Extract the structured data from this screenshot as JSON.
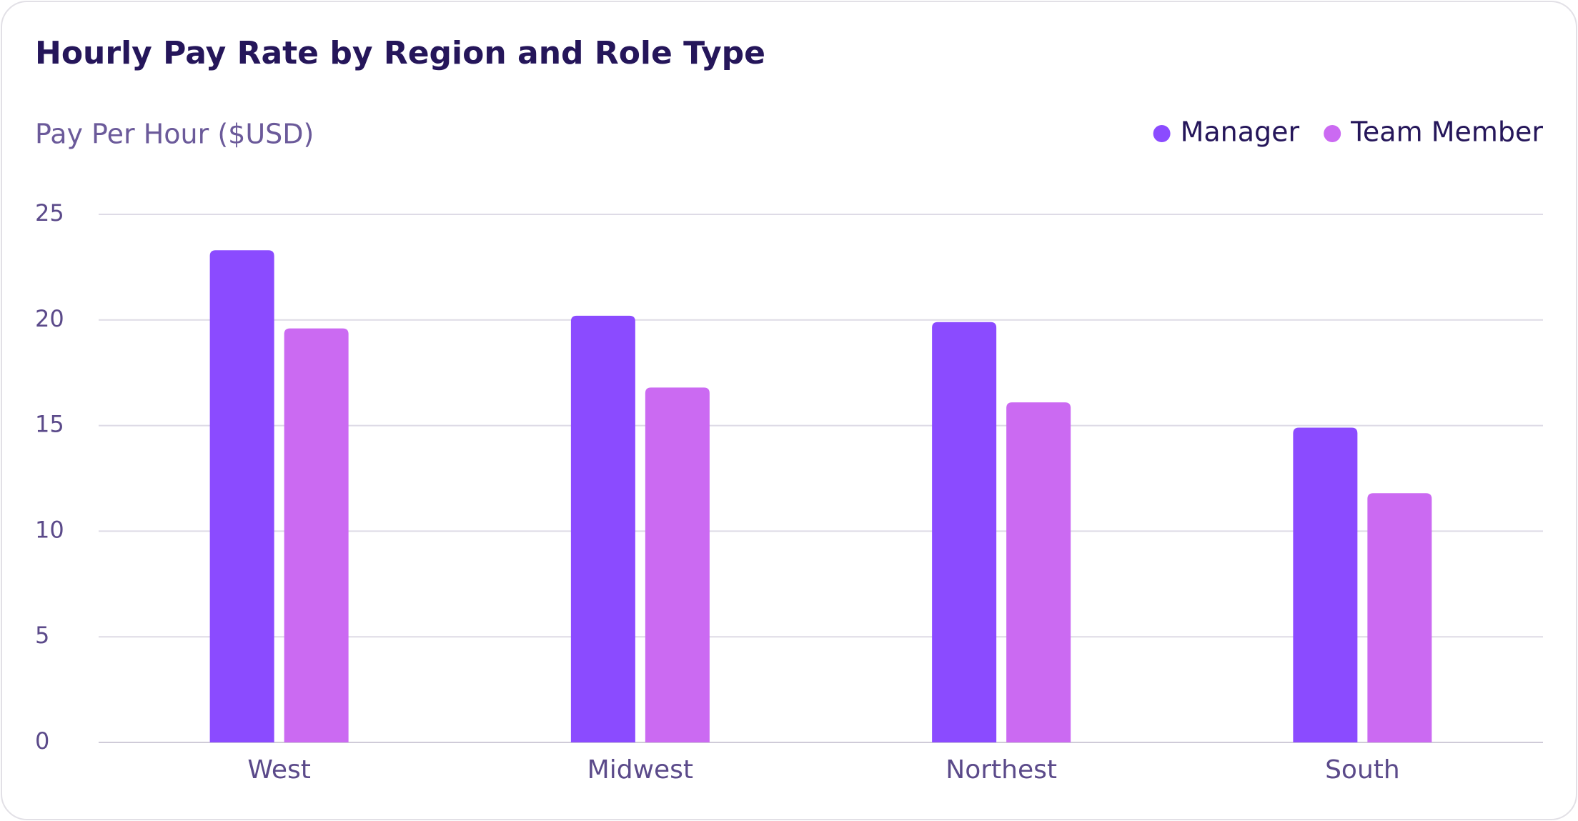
{
  "chart_data": {
    "type": "bar",
    "title": "Hourly Pay Rate by Region and Role Type",
    "y_label": "Pay Per Hour ($USD)",
    "categories": [
      "West",
      "Midwest",
      "Northest",
      "South"
    ],
    "series": [
      {
        "name": "Manager",
        "color": "#8b4bff",
        "values": [
          23.3,
          20.2,
          19.9,
          14.9
        ]
      },
      {
        "name": "Team Member",
        "color": "#cb6af2",
        "values": [
          19.6,
          16.8,
          16.1,
          11.8
        ]
      }
    ],
    "ylim": [
      0,
      25
    ],
    "yticks": [
      0,
      5,
      10,
      15,
      20,
      25
    ],
    "grid": true,
    "legend": "top-right"
  }
}
